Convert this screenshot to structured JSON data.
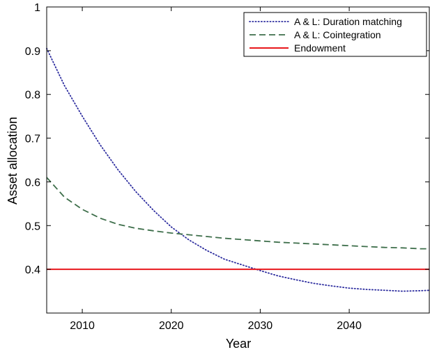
{
  "chart_data": {
    "type": "line",
    "title": "",
    "xlabel": "Year",
    "ylabel": "Asset allocation",
    "xlim": [
      2006,
      2049
    ],
    "ylim": [
      0.3,
      1.0
    ],
    "x_ticks": [
      2010,
      2020,
      2030,
      2040
    ],
    "y_ticks": [
      0.4,
      0.5,
      0.6,
      0.7,
      0.8,
      0.9,
      1
    ],
    "y_tick_labels": [
      "0.4",
      "0.5",
      "0.6",
      "0.7",
      "0.8",
      "0.9",
      "1"
    ],
    "grid": false,
    "legend_position": "top-right",
    "series": [
      {
        "name": "A & L: Duration matching",
        "color": "#2b2b9e",
        "style": "dotted",
        "x": [
          2006,
          2008,
          2010,
          2012,
          2014,
          2016,
          2018,
          2020,
          2022,
          2024,
          2026,
          2028,
          2030,
          2032,
          2034,
          2036,
          2038,
          2040,
          2042,
          2044,
          2046,
          2048,
          2049
        ],
        "values": [
          0.905,
          0.82,
          0.75,
          0.685,
          0.628,
          0.578,
          0.535,
          0.497,
          0.467,
          0.443,
          0.423,
          0.41,
          0.397,
          0.385,
          0.376,
          0.368,
          0.362,
          0.357,
          0.354,
          0.352,
          0.35,
          0.351,
          0.352
        ]
      },
      {
        "name": "A & L: Cointegration",
        "color": "#3d6e4a",
        "style": "dashed",
        "x": [
          2006,
          2008,
          2010,
          2012,
          2014,
          2016,
          2018,
          2020,
          2022,
          2024,
          2026,
          2028,
          2030,
          2032,
          2034,
          2036,
          2038,
          2040,
          2042,
          2044,
          2046,
          2048,
          2049
        ],
        "values": [
          0.61,
          0.565,
          0.537,
          0.517,
          0.503,
          0.494,
          0.488,
          0.483,
          0.479,
          0.475,
          0.471,
          0.468,
          0.465,
          0.462,
          0.46,
          0.458,
          0.456,
          0.454,
          0.452,
          0.45,
          0.449,
          0.447,
          0.447
        ]
      },
      {
        "name": "Endowment",
        "color": "#e8161b",
        "style": "solid",
        "x": [
          2006,
          2049
        ],
        "values": [
          0.4,
          0.4
        ]
      }
    ]
  }
}
